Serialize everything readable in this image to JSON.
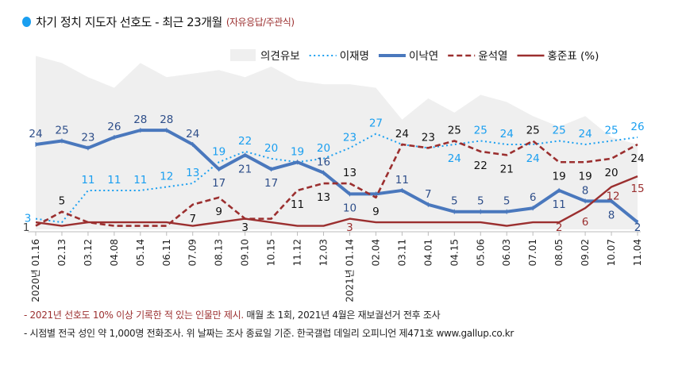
{
  "title": "차기 정치 지도자 선호도 - 최근 23개월",
  "subtitle": "(자유응답/주관식)",
  "footnotes": [
    {
      "red": "- 2021년 선호도 10% 이상 기록한 적 있는 인물만 제시.",
      "text": " 매월 초 1회, 2021년 4월은 재보궐선거 전후 조사"
    },
    {
      "red": "",
      "text": "- 시점별 전국 성인 약 1,000명 전화조사. 위 날짜는 조사 종료일 기준. 한국갤럽 데일리 오피니언 제471호 www.gallup.co.kr"
    }
  ],
  "chart_data": {
    "type": "line",
    "unit": "(%)",
    "categories": [
      "2020년 01.16",
      "02.13",
      "03.12",
      "04.08",
      "05.14",
      "06.11",
      "07.09",
      "08.13",
      "09.10",
      "10.15",
      "11.12",
      "12.03",
      "2021년 01.14",
      "02.04",
      "03.11",
      "04.01",
      "04.15",
      "05.06",
      "06.03",
      "07.01",
      "08.05",
      "09.02",
      "10.07",
      "11.04"
    ],
    "ylim": [
      0,
      50
    ],
    "grid": false,
    "legend": "top-right",
    "series": [
      {
        "name": "의견유보",
        "style": "area",
        "color": "#efefef",
        "values": [
          49,
          47,
          43,
          40,
          47,
          43,
          44,
          45,
          43,
          46,
          42,
          41,
          41,
          40,
          31,
          37,
          33,
          38,
          36,
          32,
          29,
          32,
          26,
          24
        ],
        "labels": [
          null,
          null,
          null,
          null,
          null,
          null,
          null,
          null,
          null,
          null,
          null,
          null,
          null,
          null,
          null,
          null,
          null,
          null,
          null,
          null,
          null,
          null,
          null,
          null
        ]
      },
      {
        "name": "이재명",
        "style": "dotted",
        "color": "#1a9ff0",
        "label_color": "#1a9ff0",
        "values": [
          3,
          2,
          11,
          11,
          11,
          12,
          13,
          19,
          22,
          20,
          19,
          20,
          23,
          27,
          24,
          23,
          24,
          25,
          24,
          24,
          25,
          24,
          25,
          26
        ],
        "labels": [
          "3",
          null,
          "11",
          "11",
          "11",
          "12",
          "13",
          "19",
          "22",
          "20",
          "19",
          "20",
          "23",
          "27",
          null,
          null,
          "24",
          "25",
          "24",
          "24",
          "25",
          "24",
          "25",
          "26"
        ]
      },
      {
        "name": "이낙연",
        "style": "solid-thick",
        "color": "#4a78bd",
        "label_color": "#2f4f8a",
        "values": [
          24,
          25,
          23,
          26,
          28,
          28,
          24,
          17,
          21,
          17,
          19,
          16,
          10,
          10,
          11,
          7,
          5,
          5,
          5,
          6,
          11,
          8,
          8,
          2
        ],
        "labels": [
          "24",
          "25",
          "23",
          "26",
          "28",
          "28",
          "24",
          "17",
          "21",
          "17",
          null,
          "16",
          "10",
          null,
          "11",
          "7",
          "5",
          "5",
          "5",
          "6",
          "11",
          "8",
          "8",
          "2"
        ]
      },
      {
        "name": "윤석열",
        "style": "dashed",
        "color": "#9b2f2f",
        "label_color": "#111111",
        "values": [
          1,
          5,
          2,
          1,
          1,
          1,
          7,
          9,
          3,
          3,
          11,
          13,
          13,
          9,
          24,
          23,
          25,
          22,
          21,
          25,
          19,
          19,
          20,
          24
        ],
        "labels": [
          "1",
          "5",
          null,
          null,
          null,
          null,
          "7",
          "9",
          "3",
          null,
          "11",
          "13",
          "13",
          "9",
          "24",
          "23",
          "25",
          "22",
          "21",
          "25",
          "19",
          "19",
          "20",
          "24"
        ]
      },
      {
        "name": "홍준표",
        "style": "solid",
        "color": "#9b2f2f",
        "label_color": "#9b2f2f",
        "values": [
          2,
          1,
          2,
          2,
          2,
          2,
          1,
          2,
          3,
          2,
          1,
          1,
          3,
          2,
          2,
          2,
          2,
          2,
          1,
          2,
          2,
          6,
          12,
          15
        ],
        "labels": [
          null,
          null,
          null,
          null,
          null,
          null,
          null,
          null,
          null,
          null,
          null,
          null,
          "3",
          null,
          null,
          null,
          null,
          null,
          null,
          null,
          "2",
          "6",
          "12",
          "15"
        ]
      }
    ]
  }
}
